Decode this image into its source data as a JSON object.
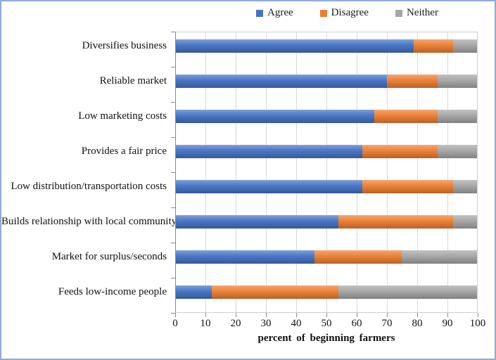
{
  "legend": [
    {
      "label": "Agree",
      "color": "#4472C4"
    },
    {
      "label": "Disagree",
      "color": "#ED7D31"
    },
    {
      "label": "Neither",
      "color": "#A5A5A5"
    }
  ],
  "chart_data": {
    "type": "bar",
    "orientation": "horizontal",
    "stacked": true,
    "title": "",
    "xlabel": "percent of beginning farmers",
    "ylabel": "",
    "xlim": [
      0,
      100
    ],
    "x_ticks": [
      0,
      10,
      20,
      30,
      40,
      50,
      60,
      70,
      80,
      90,
      100
    ],
    "grid": true,
    "legend_position": "top",
    "categories": [
      "Diversifies business",
      "Reliable market",
      "Low marketing costs",
      "Provides a fair price",
      "Low distribution/transportation costs",
      "Builds relationship with local community",
      "Market for surplus/seconds",
      "Feeds low-income people"
    ],
    "series": [
      {
        "name": "Agree",
        "color": "#4472C4",
        "values": [
          79,
          70,
          66,
          62,
          62,
          54,
          46,
          12
        ]
      },
      {
        "name": "Disagree",
        "color": "#ED7D31",
        "values": [
          13,
          17,
          21,
          25,
          30,
          38,
          29,
          42
        ]
      },
      {
        "name": "Neither",
        "color": "#A5A5A5",
        "values": [
          8,
          13,
          13,
          13,
          8,
          8,
          25,
          46
        ]
      }
    ]
  }
}
